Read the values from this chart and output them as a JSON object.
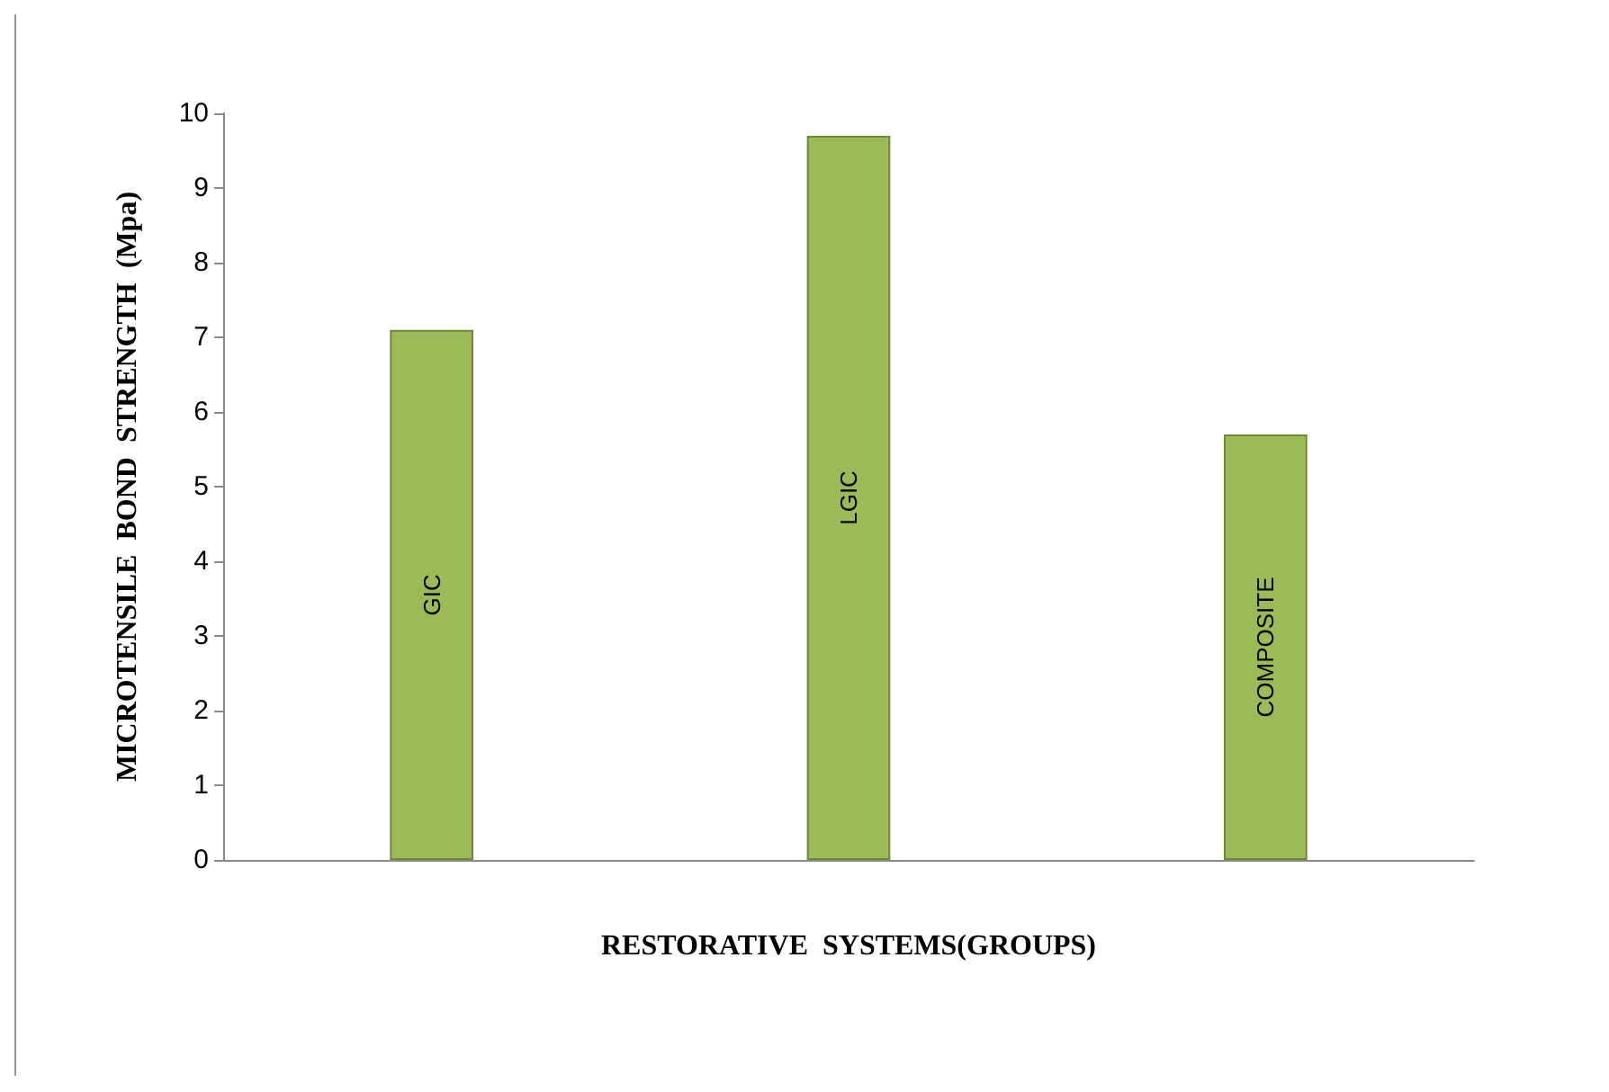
{
  "chart_data": {
    "type": "bar",
    "xlabel": "RESTORATIVE  SYSTEMS(GROUPS)",
    "ylabel": "MICROTENSILE  BOND  STRENGTH  (Mpa)",
    "categories": [
      "GIC",
      "LGIC",
      "COMPOSITE"
    ],
    "values": [
      7.1,
      9.7,
      5.7
    ],
    "color": "#9bbb59",
    "ylim": [
      0,
      10
    ],
    "yticks": [
      0,
      1,
      2,
      3,
      4,
      5,
      6,
      7,
      8,
      9,
      10
    ],
    "grid": false
  }
}
